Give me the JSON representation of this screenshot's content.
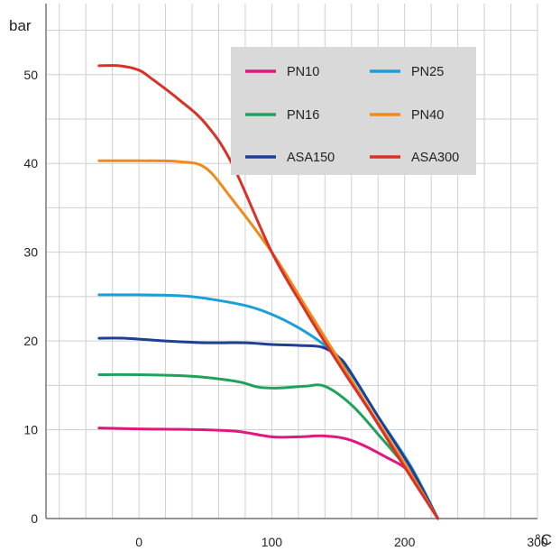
{
  "chart_data": {
    "type": "line",
    "ylabel": "bar",
    "xlabel": "°C",
    "xlim": [
      -70,
      300
    ],
    "ylim": [
      0,
      58
    ],
    "x_ticks": [
      0,
      100,
      200,
      300
    ],
    "x_tick_labels": [
      "0",
      "100",
      "200",
      "300"
    ],
    "y_ticks": [
      0,
      10,
      20,
      30,
      40,
      50
    ],
    "y_tick_labels": [
      "0",
      "10",
      "20",
      "30",
      "40",
      "50"
    ],
    "grid": true,
    "legend_position": "top-right",
    "legend_bg": "#d9d9d9",
    "series": [
      {
        "name": "PN10",
        "color": "#e0177f",
        "points": [
          [
            -30,
            10.2
          ],
          [
            0,
            10.1
          ],
          [
            50,
            10.0
          ],
          [
            75,
            9.8
          ],
          [
            100,
            9.2
          ],
          [
            120,
            9.2
          ],
          [
            140,
            9.3
          ],
          [
            160,
            8.8
          ],
          [
            185,
            7.0
          ],
          [
            205,
            5.0
          ],
          [
            225,
            0
          ]
        ]
      },
      {
        "name": "PN25",
        "color": "#1aa0d8",
        "points": [
          [
            -30,
            25.2
          ],
          [
            0,
            25.2
          ],
          [
            30,
            25.1
          ],
          [
            50,
            24.8
          ],
          [
            80,
            24.0
          ],
          [
            100,
            23.0
          ],
          [
            120,
            21.5
          ],
          [
            140,
            19.5
          ],
          [
            155,
            17.3
          ],
          [
            180,
            11.5
          ],
          [
            205,
            5.8
          ],
          [
            225,
            0
          ]
        ]
      },
      {
        "name": "PN16",
        "color": "#1fa35a",
        "points": [
          [
            -30,
            16.2
          ],
          [
            0,
            16.2
          ],
          [
            30,
            16.1
          ],
          [
            50,
            15.9
          ],
          [
            75,
            15.4
          ],
          [
            90,
            14.8
          ],
          [
            105,
            14.7
          ],
          [
            125,
            14.9
          ],
          [
            140,
            14.9
          ],
          [
            160,
            12.8
          ],
          [
            180,
            9.5
          ],
          [
            205,
            5.0
          ],
          [
            225,
            0
          ]
        ]
      },
      {
        "name": "PN40",
        "color": "#f08a1a",
        "points": [
          [
            -30,
            40.3
          ],
          [
            0,
            40.3
          ],
          [
            30,
            40.2
          ],
          [
            50,
            39.5
          ],
          [
            70,
            36.0
          ],
          [
            100,
            30.0
          ],
          [
            125,
            24.0
          ],
          [
            150,
            18.0
          ],
          [
            175,
            12.0
          ],
          [
            200,
            6.2
          ],
          [
            225,
            0
          ]
        ]
      },
      {
        "name": "ASA150",
        "color": "#1d3f94",
        "points": [
          [
            -30,
            20.3
          ],
          [
            -10,
            20.3
          ],
          [
            20,
            20.0
          ],
          [
            50,
            19.8
          ],
          [
            80,
            19.8
          ],
          [
            100,
            19.6
          ],
          [
            120,
            19.5
          ],
          [
            138,
            19.3
          ],
          [
            150,
            18.2
          ],
          [
            158,
            16.8
          ],
          [
            180,
            11.5
          ],
          [
            205,
            5.6
          ],
          [
            225,
            0
          ]
        ]
      },
      {
        "name": "ASA300",
        "color": "#d83228",
        "points": [
          [
            -30,
            51.0
          ],
          [
            -15,
            51.0
          ],
          [
            0,
            50.5
          ],
          [
            10,
            49.5
          ],
          [
            30,
            47.2
          ],
          [
            50,
            44.5
          ],
          [
            70,
            40.0
          ],
          [
            100,
            30.0
          ],
          [
            125,
            23.5
          ],
          [
            150,
            17.5
          ],
          [
            175,
            11.8
          ],
          [
            200,
            5.8
          ],
          [
            225,
            0
          ]
        ]
      }
    ]
  }
}
